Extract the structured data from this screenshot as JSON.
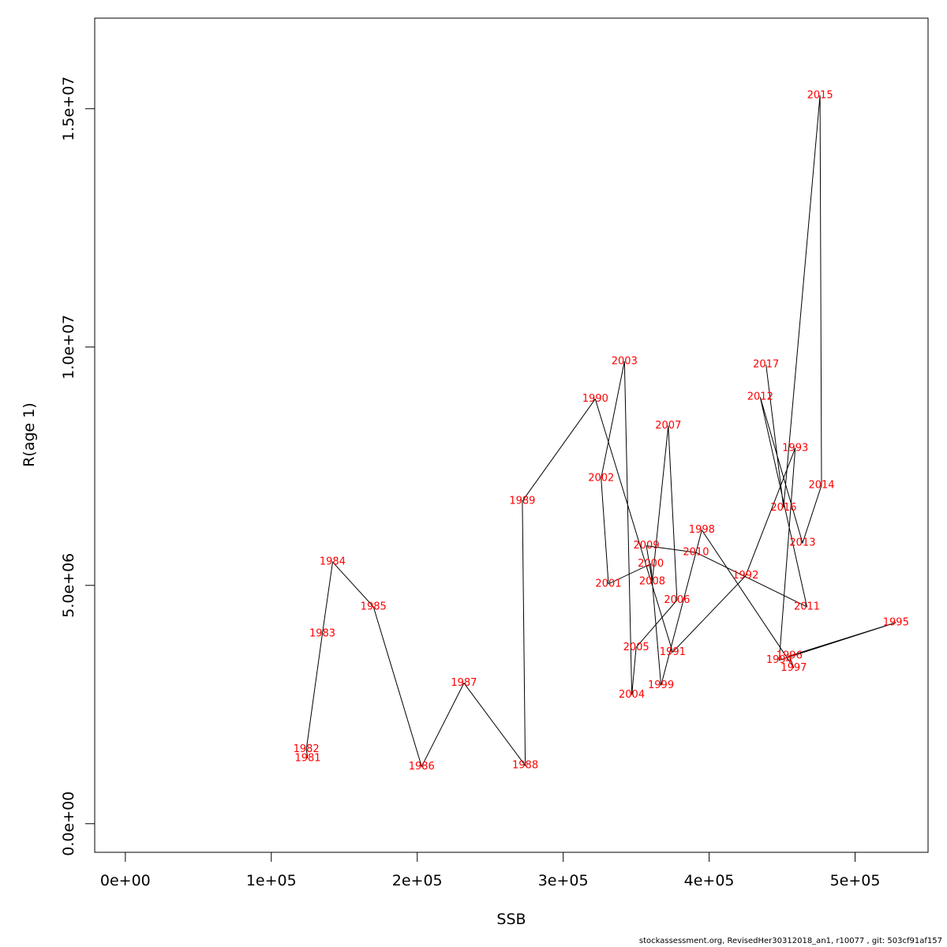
{
  "chart_data": {
    "type": "line",
    "title": "",
    "xlabel": "SSB",
    "ylabel": "R(age 1)",
    "xlim": [
      -21000,
      550000
    ],
    "ylim": [
      -600000,
      16900000
    ],
    "x_ticks": [
      {
        "value": 0,
        "label": "0e+00"
      },
      {
        "value": 100000,
        "label": "1e+05"
      },
      {
        "value": 200000,
        "label": "2e+05"
      },
      {
        "value": 300000,
        "label": "3e+05"
      },
      {
        "value": 400000,
        "label": "4e+05"
      },
      {
        "value": 500000,
        "label": "5e+05"
      }
    ],
    "y_ticks": [
      {
        "value": 0,
        "label": "0.0e+00"
      },
      {
        "value": 5000000,
        "label": "5.0e+06"
      },
      {
        "value": 10000000,
        "label": "1.0e+07"
      },
      {
        "value": 15000000,
        "label": "1.5e+07"
      }
    ],
    "grid": false,
    "line_color": "#000000",
    "label_color": "#ff0000",
    "points": [
      {
        "year": "1981",
        "x": 125000,
        "y": 1370000
      },
      {
        "year": "1982",
        "x": 124000,
        "y": 1560000
      },
      {
        "year": "1983",
        "x": 135000,
        "y": 3990000
      },
      {
        "year": "1984",
        "x": 142000,
        "y": 5490000
      },
      {
        "year": "1985",
        "x": 170000,
        "y": 4550000
      },
      {
        "year": "1986",
        "x": 203000,
        "y": 1200000
      },
      {
        "year": "1987",
        "x": 232000,
        "y": 2950000
      },
      {
        "year": "1988",
        "x": 274000,
        "y": 1220000
      },
      {
        "year": "1989",
        "x": 272000,
        "y": 6770000
      },
      {
        "year": "1990",
        "x": 322000,
        "y": 8910000
      },
      {
        "year": "1991",
        "x": 375000,
        "y": 3600000
      },
      {
        "year": "1992",
        "x": 425000,
        "y": 5200000
      },
      {
        "year": "1993",
        "x": 459000,
        "y": 7880000
      },
      {
        "year": "1994",
        "x": 448000,
        "y": 3430000
      },
      {
        "year": "1995",
        "x": 528000,
        "y": 4220000
      },
      {
        "year": "1996",
        "x": 455000,
        "y": 3520000
      },
      {
        "year": "1997",
        "x": 458000,
        "y": 3270000
      },
      {
        "year": "1998",
        "x": 395000,
        "y": 6160000
      },
      {
        "year": "1999",
        "x": 367000,
        "y": 2900000
      },
      {
        "year": "2000",
        "x": 360000,
        "y": 5450000
      },
      {
        "year": "2001",
        "x": 331000,
        "y": 5030000
      },
      {
        "year": "2002",
        "x": 326000,
        "y": 7250000
      },
      {
        "year": "2003",
        "x": 342000,
        "y": 9700000
      },
      {
        "year": "2004",
        "x": 347000,
        "y": 2700000
      },
      {
        "year": "2005",
        "x": 350000,
        "y": 3700000
      },
      {
        "year": "2006",
        "x": 378000,
        "y": 4690000
      },
      {
        "year": "2007",
        "x": 372000,
        "y": 8350000
      },
      {
        "year": "2008",
        "x": 361000,
        "y": 5080000
      },
      {
        "year": "2009",
        "x": 357000,
        "y": 5830000
      },
      {
        "year": "2010",
        "x": 391000,
        "y": 5690000
      },
      {
        "year": "2011",
        "x": 467000,
        "y": 4550000
      },
      {
        "year": "2012",
        "x": 435000,
        "y": 8950000
      },
      {
        "year": "2013",
        "x": 464000,
        "y": 5890000
      },
      {
        "year": "2014",
        "x": 477000,
        "y": 7100000
      },
      {
        "year": "2015",
        "x": 476000,
        "y": 15280000
      },
      {
        "year": "2016",
        "x": 451000,
        "y": 6630000
      },
      {
        "year": "2017",
        "x": 439000,
        "y": 9630000
      }
    ]
  },
  "footer": {
    "text": "stockassessment.org, RevisedHer30312018_an1, r10077 , git: 503cf91af157"
  }
}
